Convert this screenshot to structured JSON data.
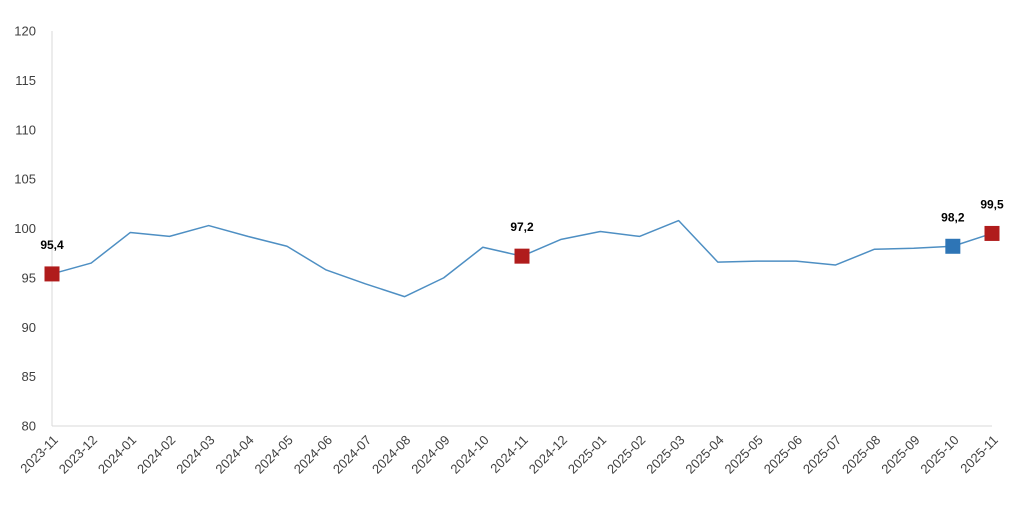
{
  "chart_data": {
    "type": "line",
    "title": "",
    "xlabel": "",
    "ylabel": "",
    "ylim": [
      80,
      120
    ],
    "yticks": [
      80,
      85,
      90,
      95,
      100,
      105,
      110,
      115,
      120
    ],
    "y_tick_labels": [
      "80",
      "85",
      "90",
      "95",
      "100",
      "105",
      "110",
      "115",
      "120"
    ],
    "grid": false,
    "legend": "none",
    "categories": [
      "2023-11",
      "2023-12",
      "2024-01",
      "2024-02",
      "2024-03",
      "2024-04",
      "2024-05",
      "2024-06",
      "2024-07",
      "2024-08",
      "2024-09",
      "2024-10",
      "2024-11",
      "2024-12",
      "2025-01",
      "2025-02",
      "2025-03",
      "2025-04",
      "2025-05",
      "2025-06",
      "2025-07",
      "2025-08",
      "2025-09",
      "2025-10",
      "2025-11"
    ],
    "series": [
      {
        "values": [
          95.4,
          96.5,
          99.6,
          99.2,
          100.3,
          99.2,
          98.2,
          95.8,
          94.4,
          93.1,
          95.0,
          98.1,
          97.2,
          98.9,
          99.7,
          99.2,
          100.8,
          96.6,
          96.7,
          96.7,
          96.3,
          97.9,
          98.0,
          98.2,
          99.5
        ],
        "color": "#4e8fc3"
      }
    ],
    "highlighted_points": [
      {
        "category": "2023-11",
        "value": 95.4,
        "label": "95,4",
        "color": "#b01c1c"
      },
      {
        "category": "2024-11",
        "value": 97.2,
        "label": "97,2",
        "color": "#b01c1c"
      },
      {
        "category": "2025-10",
        "value": 98.2,
        "label": "98,2",
        "color": "#2e75b6"
      },
      {
        "category": "2025-11",
        "value": 99.5,
        "label": "99,5",
        "color": "#b01c1c"
      }
    ]
  }
}
